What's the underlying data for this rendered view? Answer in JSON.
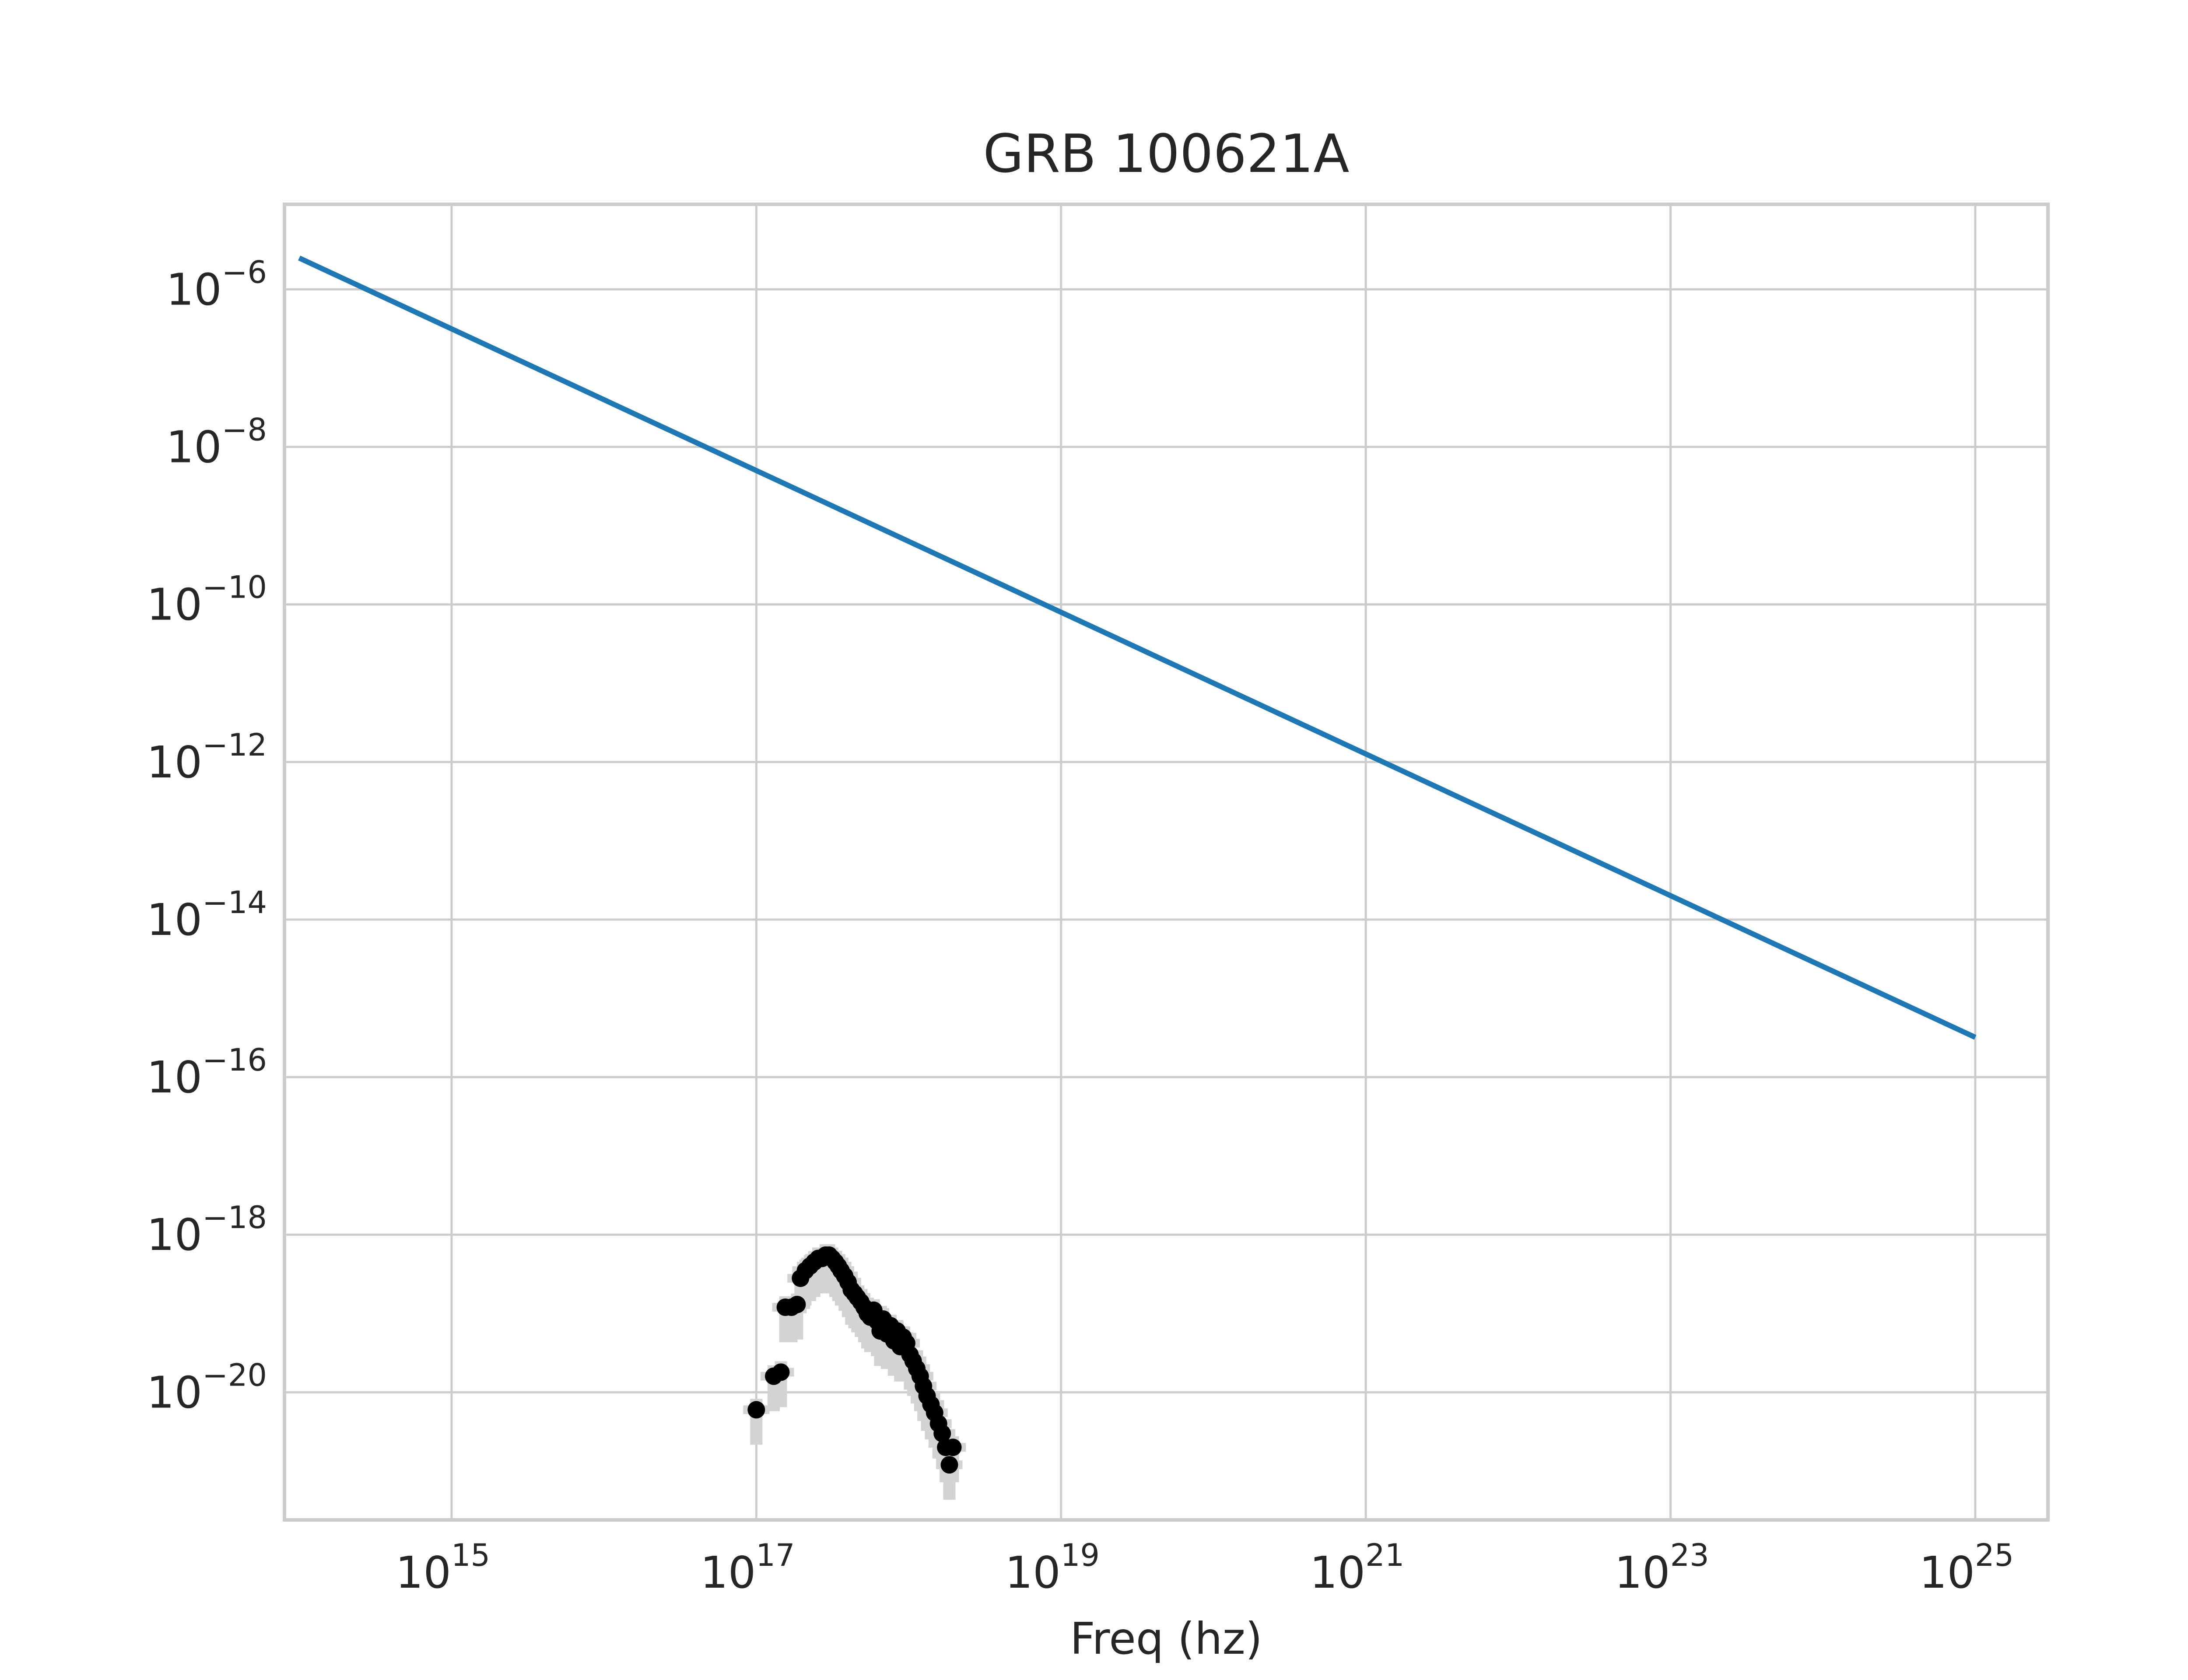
{
  "chart_data": {
    "type": "scatter",
    "title": "GRB 100621A",
    "xlabel": "Freq (hz)",
    "ylabel": "",
    "x_scale": "log",
    "y_scale": "log",
    "xlim": [
      80000000000000.0,
      3e+25
    ],
    "ylim": [
      2.4e-22,
      1.2e-05
    ],
    "grid": true,
    "x_ticks": [
      {
        "value": 1000000000000000.0,
        "base": "10",
        "exp": "15"
      },
      {
        "value": 1e+17,
        "base": "10",
        "exp": "17"
      },
      {
        "value": 1e+19,
        "base": "10",
        "exp": "19"
      },
      {
        "value": 1e+21,
        "base": "10",
        "exp": "21"
      },
      {
        "value": 1e+23,
        "base": "10",
        "exp": "23"
      },
      {
        "value": 1e+25,
        "base": "10",
        "exp": "25"
      }
    ],
    "y_ticks": [
      {
        "value": 1e-06,
        "base": "10",
        "exp": "−6"
      },
      {
        "value": 1e-08,
        "base": "10",
        "exp": "−8"
      },
      {
        "value": 1e-10,
        "base": "10",
        "exp": "−10"
      },
      {
        "value": 1e-12,
        "base": "10",
        "exp": "−12"
      },
      {
        "value": 1e-14,
        "base": "10",
        "exp": "−14"
      },
      {
        "value": 1e-16,
        "base": "10",
        "exp": "−16"
      },
      {
        "value": 1e-18,
        "base": "10",
        "exp": "−18"
      },
      {
        "value": 1e-20,
        "base": "10",
        "exp": "−20"
      }
    ],
    "series": [
      {
        "type": "line",
        "color": "#1f77b4",
        "x": [
          100000000000000.0,
          1e+25
        ],
        "y": [
          2.5e-06,
          3.2e-16
        ]
      },
      {
        "type": "scatter",
        "color": "#000000",
        "error_color": "#d3d3d3",
        "x": [
          1e+17,
          1.3e+17,
          1.45e+17,
          1.55e+17,
          1.7e+17,
          1.85e+17,
          1.95e+17,
          2.1e+17,
          2.25e+17,
          2.4e+17,
          2.55e+17,
          2.7e+17,
          2.85e+17,
          3e+17,
          3.15e+17,
          3.3e+17,
          3.45e+17,
          3.6e+17,
          3.8e+17,
          4e+17,
          4.2e+17,
          4.4e+17,
          4.6e+17,
          4.85e+17,
          5.1e+17,
          5.35e+17,
          5.6e+17,
          5.9e+17,
          6.2e+17,
          6.5e+17,
          6.8e+17,
          7.2e+17,
          7.6e+17,
          8e+17,
          8.4e+17,
          8.8e+17,
          9.2e+17,
          9.7e+17,
          1.02e+18,
          1.07e+18,
          1.13e+18,
          1.19e+18,
          1.25e+18,
          1.32e+18,
          1.4e+18,
          1.48e+18,
          1.57e+18,
          1.66e+18,
          1.75e+18,
          1.85e+18,
          1.95e+18
        ],
        "y": [
          6e-21,
          1.6e-20,
          1.8e-20,
          1.2e-19,
          1.2e-19,
          1.3e-19,
          2.8e-19,
          3.5e-19,
          4e-19,
          4.5e-19,
          5e-19,
          5e-19,
          5.5e-19,
          5.5e-19,
          5e-19,
          4.5e-19,
          4e-19,
          3.5e-19,
          3e-19,
          2.5e-19,
          2e-19,
          1.8e-19,
          1.6e-19,
          1.4e-19,
          1.2e-19,
          1e-19,
          9e-20,
          1.1e-19,
          8e-20,
          6e-20,
          8.5e-20,
          5.5e-20,
          7e-20,
          4.5e-20,
          6e-20,
          3.8e-20,
          5e-20,
          4.2e-20,
          3e-20,
          2.5e-20,
          2e-20,
          1.6e-20,
          1.2e-20,
          9e-21,
          7e-21,
          5.5e-21,
          4e-21,
          3e-21,
          2e-21,
          1.2e-21,
          2e-21
        ]
      }
    ]
  }
}
